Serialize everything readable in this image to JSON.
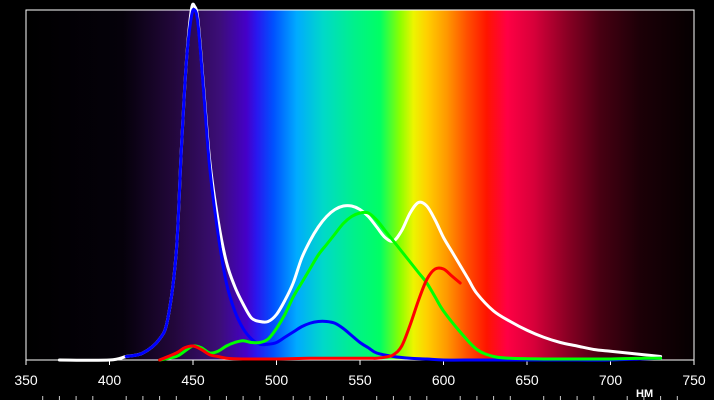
{
  "chart_data": {
    "type": "line",
    "title": "",
    "xlabel": "HM",
    "ylabel": "",
    "xlim": [
      350,
      750
    ],
    "ylim": [
      0,
      1
    ],
    "x_ticks": [
      350,
      400,
      450,
      500,
      550,
      600,
      650,
      700,
      750
    ],
    "x_tick_labels": [
      "350",
      "400",
      "450",
      "500",
      "550",
      "600",
      "650",
      "700",
      "750"
    ],
    "background": "visible-spectrum gradient",
    "grid": false,
    "legend": "none",
    "series": [
      {
        "color": "#ffffff",
        "x": [
          370,
          400,
          410,
          420,
          430,
          435,
          440,
          443,
          446,
          449,
          451,
          453,
          456,
          460,
          465,
          470,
          475,
          480,
          485,
          490,
          495,
          500,
          505,
          510,
          515,
          520,
          525,
          530,
          535,
          540,
          545,
          550,
          555,
          560,
          565,
          570,
          575,
          580,
          585,
          590,
          595,
          600,
          605,
          610,
          615,
          620,
          630,
          640,
          650,
          660,
          670,
          680,
          690,
          700,
          710,
          720,
          730
        ],
        "y": [
          0.0,
          0.0,
          0.01,
          0.02,
          0.06,
          0.12,
          0.31,
          0.6,
          0.85,
          1.0,
          1.01,
          0.97,
          0.8,
          0.57,
          0.4,
          0.28,
          0.21,
          0.16,
          0.12,
          0.11,
          0.11,
          0.13,
          0.17,
          0.22,
          0.29,
          0.34,
          0.38,
          0.41,
          0.43,
          0.44,
          0.44,
          0.43,
          0.41,
          0.38,
          0.35,
          0.34,
          0.37,
          0.42,
          0.45,
          0.44,
          0.4,
          0.35,
          0.31,
          0.27,
          0.23,
          0.19,
          0.14,
          0.11,
          0.085,
          0.065,
          0.05,
          0.04,
          0.03,
          0.025,
          0.02,
          0.015,
          0.01
        ]
      },
      {
        "color": "#0000ff",
        "x": [
          410,
          420,
          430,
          435,
          440,
          443,
          446,
          449,
          451,
          453,
          456,
          460,
          465,
          470,
          475,
          480,
          485,
          490,
          495,
          500,
          505,
          510,
          515,
          520,
          525,
          530,
          535,
          540,
          545,
          550,
          555,
          560,
          570,
          580,
          590,
          600,
          620,
          640,
          660,
          680,
          700,
          730
        ],
        "y": [
          0.01,
          0.02,
          0.06,
          0.12,
          0.31,
          0.6,
          0.85,
          0.98,
          1.0,
          0.96,
          0.79,
          0.55,
          0.36,
          0.22,
          0.14,
          0.09,
          0.06,
          0.045,
          0.045,
          0.05,
          0.065,
          0.08,
          0.095,
          0.105,
          0.11,
          0.11,
          0.105,
          0.09,
          0.07,
          0.05,
          0.035,
          0.02,
          0.01,
          0.005,
          0.003,
          0.0,
          0.0,
          0.0,
          0.0,
          0.0,
          0.0,
          0.005
        ]
      },
      {
        "color": "#00ff00",
        "x": [
          430,
          440,
          445,
          450,
          455,
          460,
          465,
          470,
          475,
          480,
          485,
          490,
          495,
          500,
          505,
          510,
          515,
          520,
          525,
          530,
          535,
          540,
          545,
          550,
          555,
          560,
          565,
          570,
          575,
          580,
          585,
          590,
          595,
          600,
          610,
          620,
          630,
          640,
          660,
          680,
          700,
          720,
          730
        ],
        "y": [
          0.0,
          0.01,
          0.025,
          0.04,
          0.035,
          0.02,
          0.025,
          0.04,
          0.05,
          0.055,
          0.05,
          0.05,
          0.06,
          0.09,
          0.13,
          0.18,
          0.22,
          0.26,
          0.3,
          0.33,
          0.36,
          0.39,
          0.41,
          0.42,
          0.42,
          0.4,
          0.37,
          0.34,
          0.31,
          0.28,
          0.25,
          0.22,
          0.18,
          0.14,
          0.08,
          0.03,
          0.01,
          0.005,
          0.003,
          0.003,
          0.003,
          0.005,
          0.005
        ]
      },
      {
        "color": "#ff0000",
        "x": [
          430,
          440,
          445,
          450,
          455,
          460,
          465,
          470,
          480,
          500,
          520,
          540,
          555,
          560,
          565,
          570,
          575,
          580,
          585,
          590,
          595,
          600,
          605,
          610
        ],
        "y": [
          0.0,
          0.02,
          0.035,
          0.04,
          0.03,
          0.015,
          0.01,
          0.005,
          0.003,
          0.003,
          0.005,
          0.005,
          0.005,
          0.005,
          0.008,
          0.015,
          0.04,
          0.1,
          0.17,
          0.23,
          0.26,
          0.26,
          0.24,
          0.22
        ]
      }
    ]
  }
}
